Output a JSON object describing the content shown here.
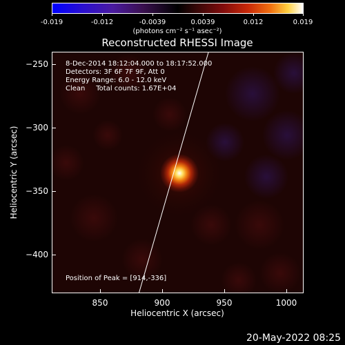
{
  "colorbar": {
    "ticks": [
      "-0.019",
      "-0.012",
      "-0.0039",
      "0.0039",
      "0.012",
      "0.019"
    ],
    "unit": "(photons cm⁻² s⁻¹ asec⁻²)"
  },
  "title": "Reconstructed RHESSI Image",
  "info": {
    "time_range": "8-Dec-2014 18:12:04.000 to 18:17:52.000",
    "detectors": "Detectors: 3F 6F 7F 9F, Att 0",
    "energy": "Energy Range: 6.0 - 12.0 keV",
    "clean": "Clean     Total counts: 1.67E+04",
    "peak": "Position of Peak = [914,-336]"
  },
  "axes": {
    "xlabel": "Heliocentric X (arcsec)",
    "ylabel": "Heliocentric Y (arcsec)",
    "xticks": [
      "850",
      "900",
      "950",
      "1000"
    ],
    "yticks": [
      "−250",
      "−300",
      "−350",
      "−400"
    ]
  },
  "timestamp": "20-May-2022 08:25",
  "chart_data": {
    "type": "heatmap",
    "title": "Reconstructed RHESSI Image",
    "xlabel": "Heliocentric X (arcsec)",
    "ylabel": "Heliocentric Y (arcsec)",
    "xlim": [
      810,
      1010
    ],
    "ylim": [
      -430,
      -240
    ],
    "peak": [
      914,
      -336
    ],
    "colorbar_range": [
      -0.019,
      0.019
    ],
    "limb_line": true
  }
}
